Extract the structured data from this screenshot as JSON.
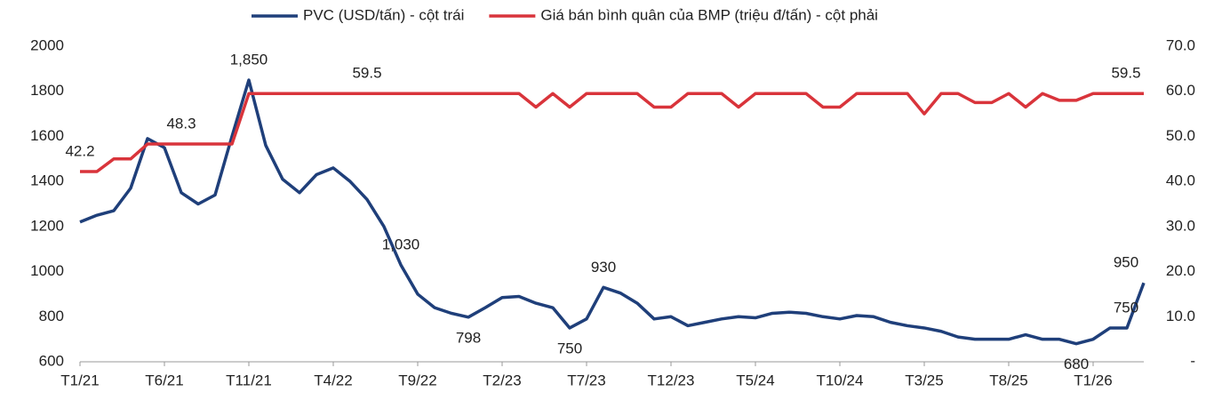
{
  "chart_data": {
    "type": "line",
    "categories": [
      "T1/21",
      null,
      null,
      null,
      null,
      "T6/21",
      null,
      null,
      null,
      null,
      "T11/21",
      null,
      null,
      null,
      null,
      "T4/22",
      null,
      null,
      null,
      null,
      "T9/22",
      null,
      null,
      null,
      null,
      "T2/23",
      null,
      null,
      null,
      null,
      "T7/23",
      null,
      null,
      null,
      null,
      "T12/23",
      null,
      null,
      null,
      null,
      "T5/24",
      null,
      null,
      null,
      null,
      "T10/24",
      null,
      null,
      null,
      null,
      "T3/25",
      null,
      null,
      null,
      null,
      "T8/25",
      null,
      null,
      null,
      null,
      "T1/26",
      null,
      null,
      null
    ],
    "series": [
      {
        "name": "PVC (USD/tấn) - cột trái",
        "color": "#1f3f7a",
        "axis": "y",
        "values": [
          1220,
          1250,
          1270,
          1370,
          1590,
          1550,
          1350,
          1300,
          1340,
          1600,
          1850,
          1560,
          1410,
          1350,
          1430,
          1460,
          1400,
          1320,
          1200,
          1030,
          900,
          840,
          815,
          798,
          840,
          885,
          890,
          860,
          840,
          750,
          790,
          930,
          905,
          860,
          790,
          800,
          760,
          775,
          790,
          800,
          795,
          815,
          820,
          815,
          800,
          790,
          805,
          800,
          775,
          760,
          750,
          735,
          710,
          700,
          700,
          700,
          720,
          700,
          700,
          680,
          700,
          750,
          750,
          950
        ],
        "value_labels": [
          null,
          null,
          null,
          null,
          null,
          null,
          null,
          null,
          null,
          null,
          "1,850",
          null,
          null,
          null,
          null,
          null,
          null,
          null,
          null,
          "1,030",
          null,
          null,
          null,
          "798",
          null,
          null,
          null,
          null,
          null,
          "750",
          null,
          "930",
          null,
          null,
          null,
          null,
          null,
          null,
          null,
          null,
          null,
          null,
          null,
          null,
          null,
          null,
          null,
          null,
          null,
          null,
          null,
          null,
          null,
          null,
          null,
          null,
          null,
          null,
          null,
          "680",
          null,
          null,
          "750",
          "950"
        ]
      },
      {
        "name": "Giá bán bình quân của BMP (triệu đ/tấn) - cột phải",
        "color": "#d9343b",
        "axis": "y2",
        "values": [
          42.2,
          42.2,
          45,
          45,
          48.3,
          48.3,
          48.3,
          48.3,
          48.3,
          48.3,
          59.5,
          59.5,
          59.5,
          59.5,
          59.5,
          59.5,
          59.5,
          59.5,
          59.5,
          59.5,
          59.5,
          59.5,
          59.5,
          59.5,
          59.5,
          59.5,
          59.5,
          56.5,
          59.5,
          56.5,
          59.5,
          59.5,
          59.5,
          59.5,
          56.5,
          56.5,
          59.5,
          59.5,
          59.5,
          56.5,
          59.5,
          59.5,
          59.5,
          59.5,
          56.5,
          56.5,
          59.5,
          59.5,
          59.5,
          59.5,
          55,
          59.5,
          59.5,
          57.5,
          57.5,
          59.5,
          56.5,
          59.5,
          58,
          58,
          59.5,
          59.5,
          59.5,
          59.5
        ],
        "value_labels": [
          "42.2",
          null,
          null,
          null,
          null,
          null,
          "48.3",
          null,
          null,
          null,
          null,
          null,
          null,
          null,
          null,
          null,
          null,
          "59.5",
          null,
          null,
          null,
          null,
          null,
          null,
          null,
          null,
          null,
          null,
          null,
          null,
          null,
          null,
          null,
          null,
          null,
          null,
          null,
          null,
          null,
          null,
          null,
          null,
          null,
          null,
          null,
          null,
          null,
          null,
          null,
          null,
          null,
          null,
          null,
          null,
          null,
          null,
          null,
          null,
          null,
          null,
          null,
          null,
          "59.5",
          null
        ]
      }
    ],
    "ylim": [
      600,
      2000
    ],
    "yticks": [
      600,
      800,
      1000,
      1200,
      1400,
      1600,
      1800,
      2000
    ],
    "y2lim": [
      0,
      70
    ],
    "y2ticks": [
      {
        "value": 0,
        "label": "-"
      },
      {
        "value": 10,
        "label": "10.0"
      },
      {
        "value": 20,
        "label": "20.0"
      },
      {
        "value": 30,
        "label": "30.0"
      },
      {
        "value": 40,
        "label": "40.0"
      },
      {
        "value": 50,
        "label": "50.0"
      },
      {
        "value": 60,
        "label": "60.0"
      },
      {
        "value": 70,
        "label": "70.0"
      }
    ],
    "grid": false,
    "legend": "top"
  }
}
